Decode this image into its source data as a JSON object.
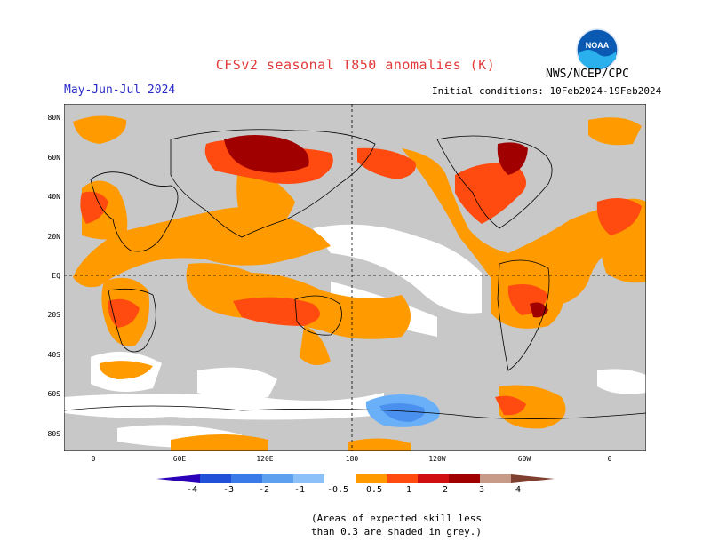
{
  "title": "CFSv2 seasonal T850 anomalies (K)",
  "agency": "NWS/NCEP/CPC",
  "logo_text": "NOAA",
  "season": "May-Jun-Jul 2024",
  "initial_conditions": "Initial conditions: 10Feb2024-19Feb2024",
  "lat_labels": [
    "80N",
    "60N",
    "40N",
    "20N",
    "EQ",
    "20S",
    "40S",
    "60S",
    "80S"
  ],
  "lon_labels": [
    "0",
    "60E",
    "120E",
    "180",
    "120W",
    "60W",
    "0"
  ],
  "colorbar": {
    "labels": [
      "-4",
      "-3",
      "-2",
      "-1",
      "-0.5",
      "0.5",
      "1",
      "2",
      "3",
      "4"
    ],
    "colors": [
      "#2a00b8",
      "#2050d8",
      "#3a7ae8",
      "#5ea0f0",
      "#8cc0f8",
      "#ffffff",
      "#ff9a00",
      "#ff4a10",
      "#d01010",
      "#a00000",
      "#c89a88",
      "#804030"
    ]
  },
  "note_line1": "(Areas of expected skill less",
  "note_line2": "than 0.3 are shaded in grey.)",
  "colors": {
    "grey": "#c8c8c8",
    "orange": "#ff9a00",
    "red_orange": "#ff4a10",
    "red": "#d01010",
    "dark_red": "#a00000",
    "light_blue": "#6ab0f8",
    "blue": "#4a90ef"
  }
}
